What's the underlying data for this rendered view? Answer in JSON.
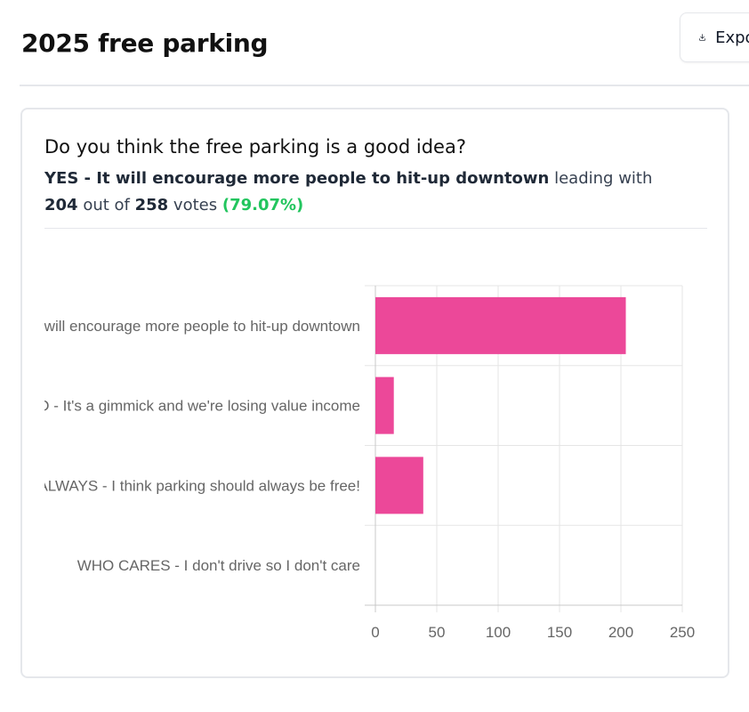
{
  "header": {
    "title": "2025 free parking",
    "export_label": "Export",
    "export_icon": "download-icon"
  },
  "poll": {
    "question": "Do you think the free parking is a good idea?",
    "leader": "YES - It will encourage more people to hit-up downtown",
    "leading_with": "leading with",
    "leader_votes": "204",
    "out_of": "out of",
    "total_votes": "258",
    "votes_word": "votes",
    "leader_pct": "(79.07%)"
  },
  "colors": {
    "bar": "#ec4899",
    "percent": "#22c55e",
    "grid": "#e5e5e5"
  },
  "chart_data": {
    "type": "bar",
    "orientation": "horizontal",
    "categories": [
      "YES - It will encourage more people to hit-up downtown",
      "NO - It's a gimmick and we're losing value income",
      "ALWAYS - I think parking should always be free!",
      "WHO CARES - I don't drive so I don't care"
    ],
    "values": [
      204,
      15,
      39,
      0
    ],
    "xlim": [
      0,
      250
    ],
    "xticks": [
      0,
      50,
      100,
      150,
      200,
      250
    ],
    "grid": true,
    "legend": "none"
  }
}
